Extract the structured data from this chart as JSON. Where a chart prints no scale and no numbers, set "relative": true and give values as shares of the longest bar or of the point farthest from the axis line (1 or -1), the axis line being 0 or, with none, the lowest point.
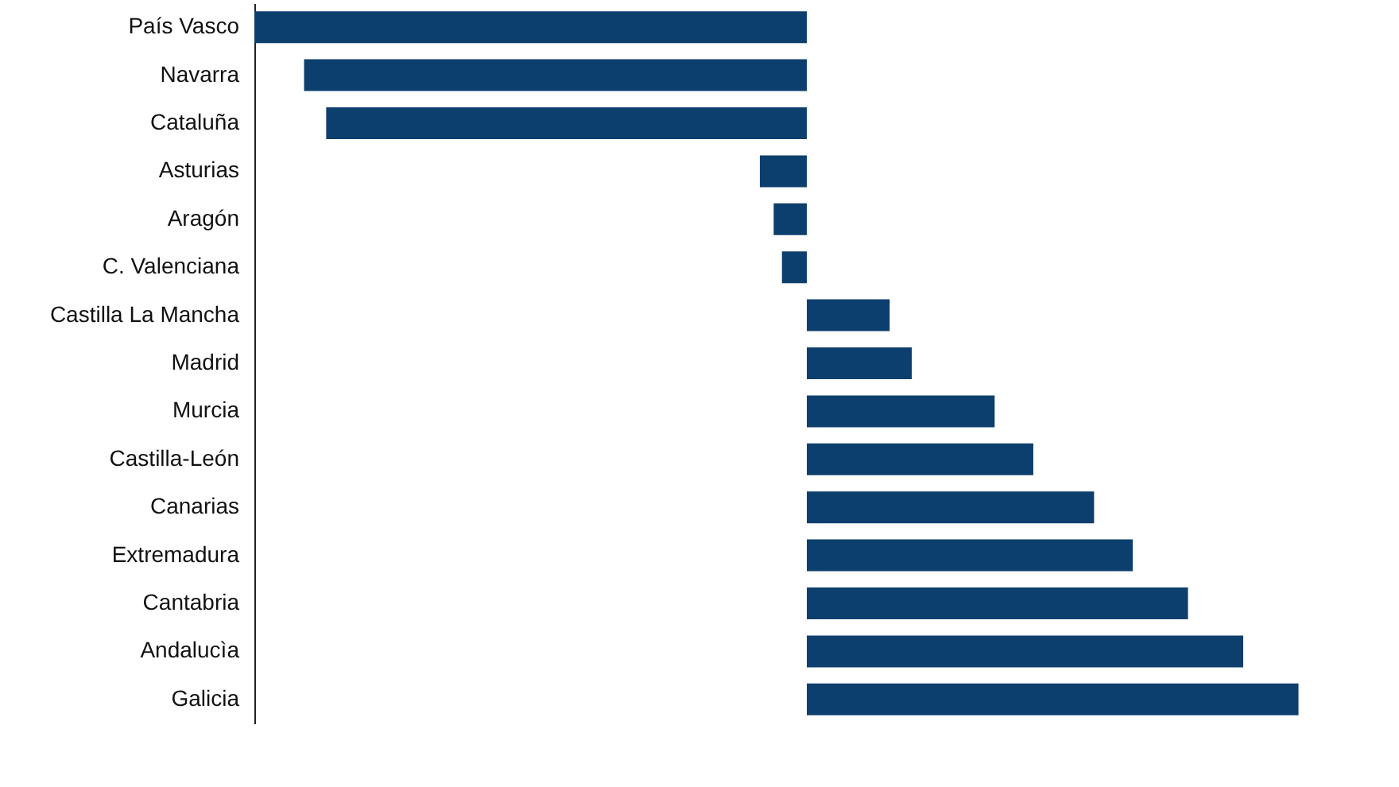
{
  "chart_data": {
    "type": "bar",
    "orientation": "horizontal",
    "relative": true,
    "color": "#0d3f6e",
    "categories": [
      "País Vasco",
      "Navarra",
      "Cataluña",
      "Asturias",
      "Aragón",
      "C. Valenciana",
      "Castilla La Mancha",
      "Madrid",
      "Murcia",
      "Castilla-León",
      "Canarias",
      "Extremadura",
      "Cantabria",
      "Andalucìa",
      "Galicia"
    ],
    "values": [
      -1,
      -0.91,
      -0.87,
      -0.085,
      -0.06,
      -0.045,
      0.15,
      0.19,
      0.34,
      0.41,
      0.52,
      0.59,
      0.69,
      0.79,
      0.89
    ]
  }
}
